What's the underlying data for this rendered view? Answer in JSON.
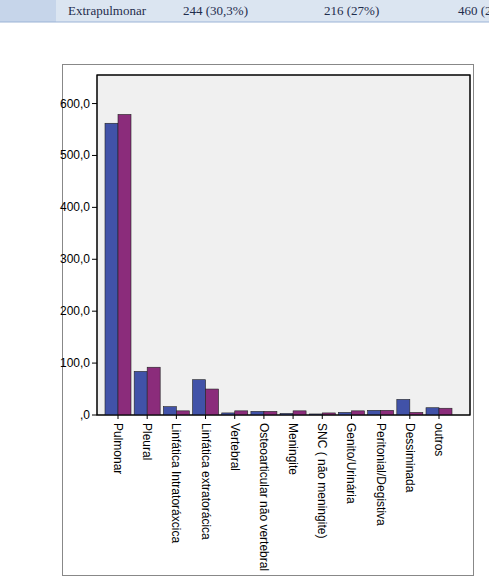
{
  "table": {
    "rows": [
      [
        "Extrapulmonar",
        "244 (30,3%)",
        "216 (27%)",
        "460 (2"
      ]
    ]
  },
  "chart_data": {
    "type": "bar",
    "categories": [
      "Pulmonar",
      "Pleural",
      "Linfática Intratoráxcica",
      "Linfática extratorácica",
      "Vertebral",
      "Osteoarticular não vertebral",
      "Meningite",
      "SNC ( não meningite)",
      "Genito/Urinária",
      "Peritonial/Degistiva",
      "Dessiminada",
      "outros"
    ],
    "series": [
      {
        "color": "#4152a8",
        "values": [
          562,
          84,
          16,
          68,
          4,
          7,
          3,
          2,
          5,
          9,
          30,
          14
        ]
      },
      {
        "color": "#8b2c7b",
        "values": [
          579,
          92,
          8,
          50,
          8,
          7,
          8,
          4,
          8,
          9,
          5,
          13
        ]
      }
    ],
    "ylim": [
      0,
      655
    ],
    "yticks": [
      {
        "value": 0,
        "label": ",0"
      },
      {
        "value": 100,
        "label": "100,0"
      },
      {
        "value": 200,
        "label": "200,0"
      },
      {
        "value": 300,
        "label": "300,0"
      },
      {
        "value": 400,
        "label": "400,0"
      },
      {
        "value": 500,
        "label": "500,0"
      },
      {
        "value": 600,
        "label": "600,0"
      }
    ],
    "grid": false
  }
}
